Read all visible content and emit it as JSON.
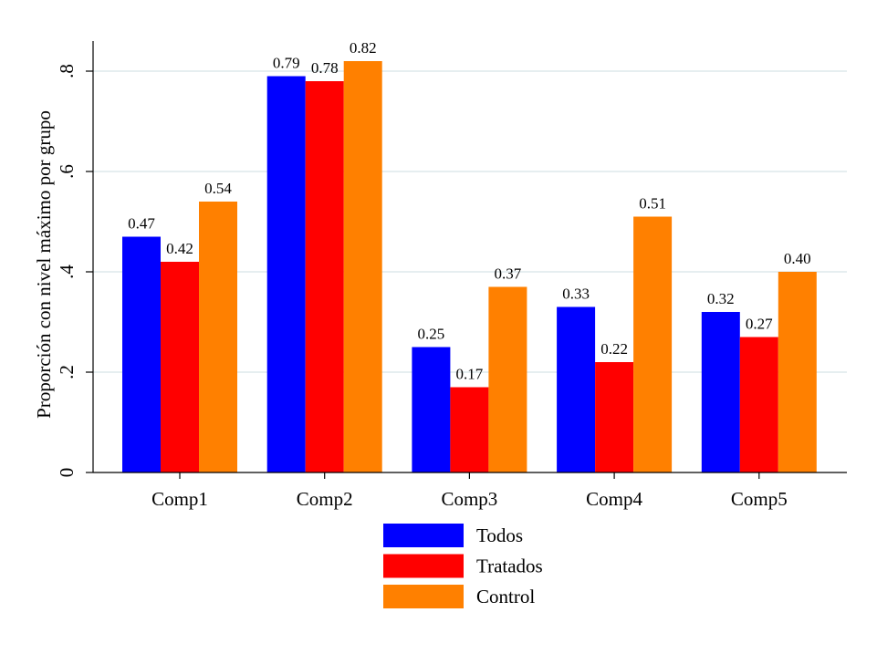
{
  "chart_data": {
    "type": "bar",
    "title": "",
    "xlabel": "",
    "ylabel": "Proporción con nivel máximo por grupo",
    "categories": [
      "Comp1",
      "Comp2",
      "Comp3",
      "Comp4",
      "Comp5"
    ],
    "series": [
      {
        "name": "Todos",
        "color": "#0000ff",
        "values": [
          0.47,
          0.79,
          0.25,
          0.33,
          0.32
        ]
      },
      {
        "name": "Tratados",
        "color": "#ff0000",
        "values": [
          0.42,
          0.78,
          0.17,
          0.22,
          0.27
        ]
      },
      {
        "name": "Control",
        "color": "#ff8000",
        "values": [
          0.54,
          0.82,
          0.37,
          0.51,
          0.4
        ]
      }
    ],
    "data_labels": [
      [
        "0.47",
        "0.79",
        "0.25",
        "0.33",
        "0.32"
      ],
      [
        "0.42",
        "0.78",
        "0.17",
        "0.22",
        "0.27"
      ],
      [
        "0.54",
        "0.82",
        "0.37",
        "0.51",
        "0.40"
      ]
    ],
    "yticks": [
      0,
      0.2,
      0.4,
      0.6,
      0.8
    ],
    "ytick_labels": [
      "0",
      ".2",
      ".4",
      ".6",
      ".8"
    ],
    "ylim": [
      0,
      0.86
    ],
    "grid": true,
    "grid_color": "#e6eef0",
    "legend": "bottom-center"
  }
}
